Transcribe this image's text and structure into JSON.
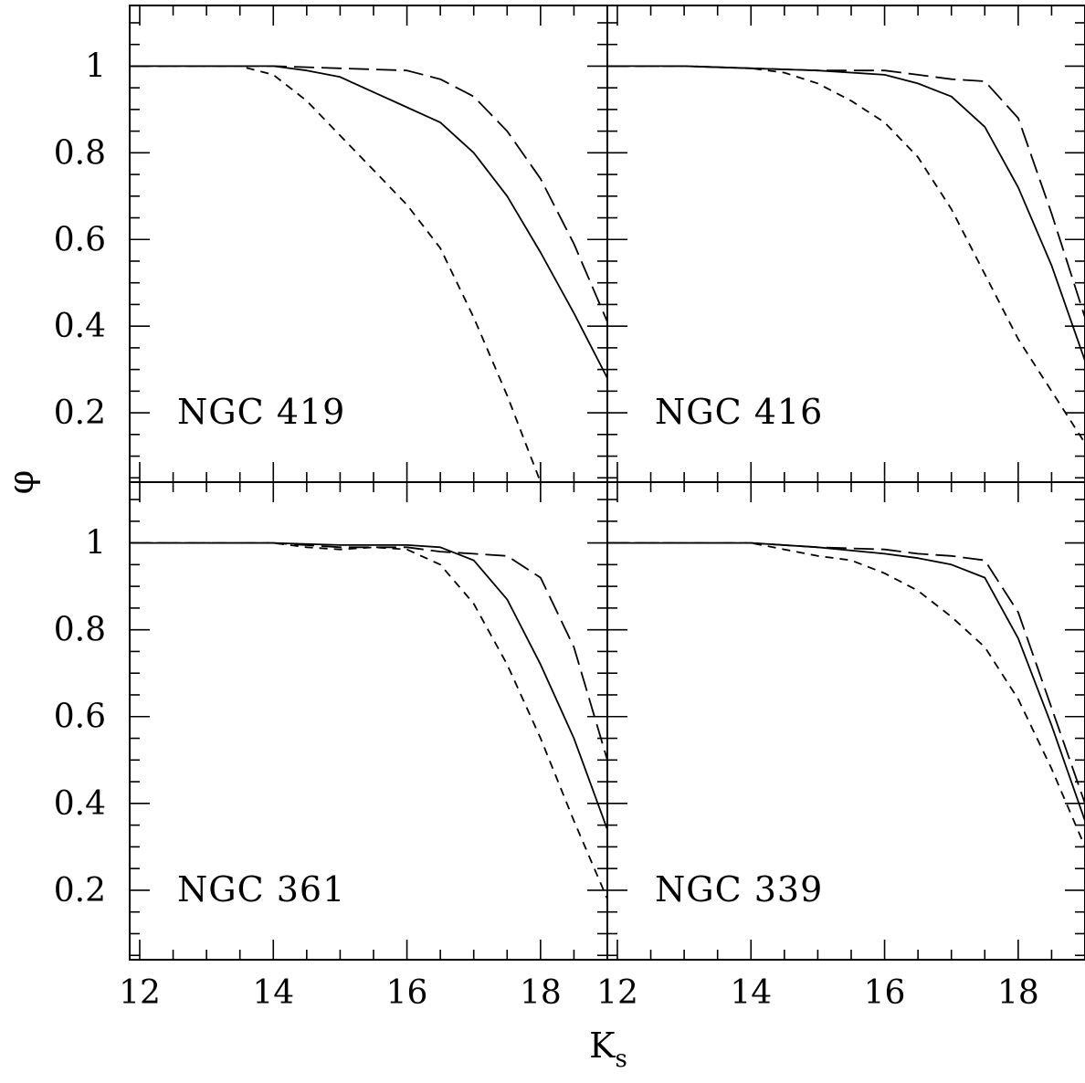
{
  "chart_data": [
    {
      "type": "line",
      "panel_label": "NGC 419",
      "xlim": [
        11.85,
        19.0
      ],
      "ylim": [
        0.04,
        1.14
      ],
      "series": [
        {
          "style": "solid",
          "x": [
            11.85,
            13,
            14,
            14.5,
            15,
            15.5,
            16,
            16.5,
            17,
            17.5,
            18,
            18.5,
            19.0
          ],
          "y": [
            1.0,
            1.0,
            1.0,
            0.99,
            0.975,
            0.94,
            0.905,
            0.87,
            0.8,
            0.7,
            0.57,
            0.43,
            0.28
          ]
        },
        {
          "style": "long-dash",
          "x": [
            11.85,
            13,
            14,
            15,
            16,
            16.5,
            17,
            17.5,
            18,
            18.5,
            19.0
          ],
          "y": [
            1.0,
            1.0,
            1.0,
            0.995,
            0.99,
            0.97,
            0.93,
            0.85,
            0.74,
            0.59,
            0.41
          ]
        },
        {
          "style": "short-dash",
          "x": [
            11.85,
            13,
            13.5,
            14,
            14.5,
            15,
            15.5,
            16,
            16.5,
            17,
            17.5,
            17.8,
            18.0
          ],
          "y": [
            1.0,
            1.0,
            1.0,
            0.98,
            0.92,
            0.84,
            0.76,
            0.68,
            0.58,
            0.42,
            0.24,
            0.12,
            0.04
          ]
        }
      ]
    },
    {
      "type": "line",
      "panel_label": "NGC 416",
      "xlim": [
        11.85,
        19.0
      ],
      "ylim": [
        0.04,
        1.14
      ],
      "series": [
        {
          "style": "solid",
          "x": [
            11.85,
            13,
            14,
            15,
            16,
            16.5,
            17,
            17.5,
            18,
            18.5,
            19.0
          ],
          "y": [
            1.0,
            1.0,
            0.995,
            0.99,
            0.98,
            0.96,
            0.93,
            0.86,
            0.72,
            0.54,
            0.32
          ]
        },
        {
          "style": "long-dash",
          "x": [
            11.85,
            13,
            14,
            15,
            16,
            16.5,
            17,
            17.5,
            18,
            18.5,
            19.0
          ],
          "y": [
            1.0,
            1.0,
            0.995,
            0.99,
            0.99,
            0.98,
            0.97,
            0.965,
            0.88,
            0.66,
            0.42
          ]
        },
        {
          "style": "short-dash",
          "x": [
            11.85,
            13,
            14,
            14.5,
            15,
            15.5,
            16,
            16.5,
            17,
            17.5,
            18,
            18.5,
            19.0
          ],
          "y": [
            1.0,
            1.0,
            0.995,
            0.985,
            0.96,
            0.92,
            0.87,
            0.79,
            0.67,
            0.52,
            0.37,
            0.25,
            0.13
          ]
        }
      ]
    },
    {
      "type": "line",
      "panel_label": "NGC 361",
      "xlim": [
        11.85,
        19.0
      ],
      "ylim": [
        0.04,
        1.14
      ],
      "series": [
        {
          "style": "solid",
          "x": [
            11.85,
            13,
            14,
            15,
            16,
            16.5,
            17,
            17.5,
            18,
            18.5,
            19.0
          ],
          "y": [
            1.0,
            1.0,
            1.0,
            0.995,
            0.995,
            0.99,
            0.96,
            0.87,
            0.72,
            0.55,
            0.34
          ]
        },
        {
          "style": "long-dash",
          "x": [
            11.85,
            13,
            14,
            15,
            16,
            16.5,
            17,
            17.5,
            18,
            18.5,
            19.0
          ],
          "y": [
            1.0,
            1.0,
            1.0,
            0.99,
            0.99,
            0.98,
            0.975,
            0.97,
            0.92,
            0.76,
            0.5
          ]
        },
        {
          "style": "short-dash",
          "x": [
            11.85,
            13,
            14,
            14.5,
            15,
            15.5,
            16,
            16.5,
            17,
            17.5,
            18,
            18.5,
            19.0
          ],
          "y": [
            1.0,
            1.0,
            1.0,
            0.99,
            0.985,
            0.99,
            0.985,
            0.95,
            0.86,
            0.72,
            0.55,
            0.36,
            0.18
          ]
        }
      ]
    },
    {
      "type": "line",
      "panel_label": "NGC 339",
      "xlim": [
        11.85,
        19.0
      ],
      "ylim": [
        0.04,
        1.14
      ],
      "series": [
        {
          "style": "solid",
          "x": [
            11.85,
            13,
            14,
            15,
            16,
            16.5,
            17,
            17.5,
            18,
            18.5,
            19.0
          ],
          "y": [
            1.0,
            1.0,
            1.0,
            0.99,
            0.975,
            0.965,
            0.95,
            0.92,
            0.78,
            0.58,
            0.36
          ]
        },
        {
          "style": "long-dash",
          "x": [
            11.85,
            13,
            14,
            15,
            16,
            16.5,
            17,
            17.5,
            18,
            18.5,
            19.0
          ],
          "y": [
            1.0,
            1.0,
            1.0,
            0.99,
            0.985,
            0.975,
            0.97,
            0.96,
            0.84,
            0.62,
            0.4
          ]
        },
        {
          "style": "short-dash",
          "x": [
            11.85,
            13,
            14,
            14.5,
            15,
            15.5,
            16,
            16.5,
            17,
            17.5,
            18,
            18.5,
            19.0
          ],
          "y": [
            1.0,
            1.0,
            1.0,
            0.985,
            0.97,
            0.96,
            0.93,
            0.89,
            0.83,
            0.76,
            0.64,
            0.48,
            0.3
          ]
        }
      ]
    }
  ],
  "axes": {
    "xlabel": "K",
    "xlabel_sub": "s",
    "ylabel": "φ",
    "x_ticks": [
      12,
      14,
      16,
      18
    ],
    "x_tick_labels": [
      "12",
      "14",
      "16",
      "18"
    ],
    "y_ticks": [
      0.2,
      0.4,
      0.6,
      0.8,
      1
    ],
    "y_tick_labels": [
      "0.2",
      "0.4",
      "0.6",
      "0.8",
      "1"
    ],
    "x_minor_step": 0.5,
    "y_minor_step": 0.05,
    "grid": false,
    "line_color": "#000000"
  }
}
